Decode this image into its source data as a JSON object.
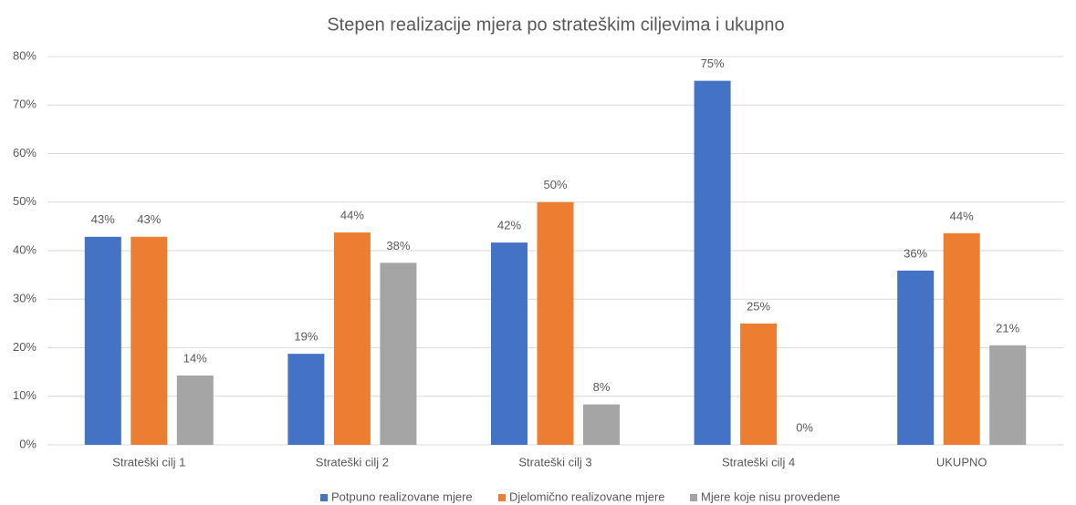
{
  "chart_data": {
    "type": "bar",
    "title": "Stepen realizacije mjera po strateškim ciljevima i ukupno",
    "categories": [
      "Strateški cilj 1",
      "Strateški cilj 2",
      "Strateški cilj 3",
      "Strateški cilj 4",
      "UKUPNO"
    ],
    "series": [
      {
        "name": "Potpuno realizovane mjere",
        "color": "#4472c4",
        "values": [
          42.86,
          18.75,
          41.67,
          75,
          35.9
        ],
        "value_labels": [
          "43%",
          "19%",
          "42%",
          "75%",
          "36%"
        ]
      },
      {
        "name": "Djelomično realizovane mjere",
        "color": "#ed7d31",
        "values": [
          42.86,
          43.75,
          50,
          25,
          43.6
        ],
        "value_labels": [
          "43%",
          "44%",
          "50%",
          "25%",
          "44%"
        ]
      },
      {
        "name": "Mjere koje nisu provedene",
        "color": "#a5a5a5",
        "values": [
          14.29,
          37.5,
          8.33,
          0,
          20.5
        ],
        "value_labels": [
          "14%",
          "38%",
          "8%",
          "0%",
          "21%"
        ]
      }
    ],
    "ylim": [
      0,
      80
    ],
    "yticks": [
      {
        "value": 0,
        "label": "0%"
      },
      {
        "value": 10,
        "label": "10%"
      },
      {
        "value": 20,
        "label": "20%"
      },
      {
        "value": 30,
        "label": "30%"
      },
      {
        "value": 40,
        "label": "40%"
      },
      {
        "value": 50,
        "label": "50%"
      },
      {
        "value": 60,
        "label": "60%"
      },
      {
        "value": 70,
        "label": "70%"
      },
      {
        "value": 80,
        "label": "80%"
      }
    ],
    "grid": true,
    "legend": "bottom"
  }
}
